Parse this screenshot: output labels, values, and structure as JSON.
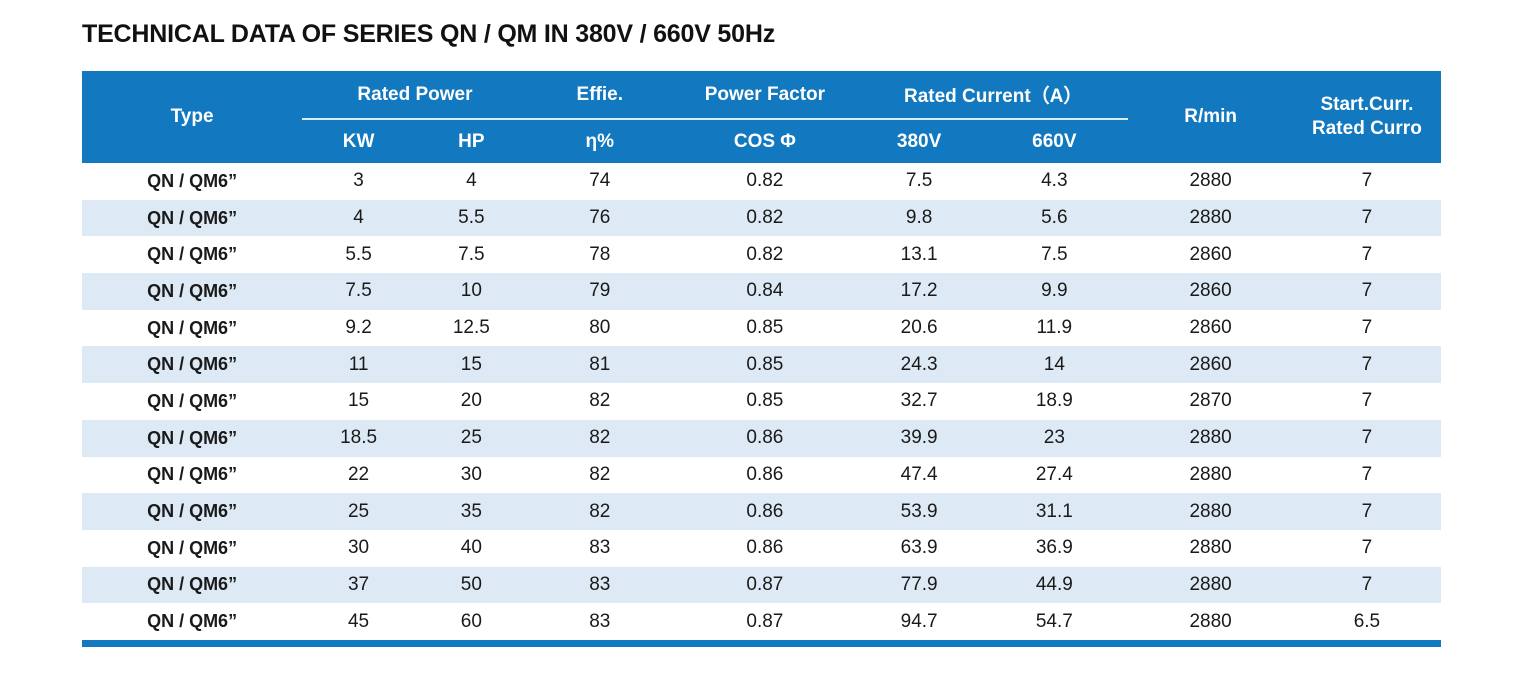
{
  "page": {
    "title": "TECHNICAL DATA OF SERIES QN / QM IN 380V / 660V 50Hz"
  },
  "colors": {
    "header_bg": "#1278bf",
    "stripe_bg": "#dde9f4",
    "bottom_bar": "#1278bf",
    "header_text": "#ffffff",
    "body_text": "#1a1a1a"
  },
  "table": {
    "header": {
      "type": "Type",
      "rated_power": "Rated Power",
      "kw": "KW",
      "hp": "HP",
      "effie": "Effie.",
      "eta_pct": "η%",
      "power_factor": "Power Factor",
      "cos_phi": "COS Φ",
      "rated_current": "Rated Current（A）",
      "v380": "380V",
      "v660": "660V",
      "rmin": "R/min",
      "start_curr_line1": "Start.Curr.",
      "start_curr_line2": "Rated Curro"
    },
    "rows": [
      [
        "QN / QM6”",
        "3",
        "4",
        "74",
        "0.82",
        "7.5",
        "4.3",
        "2880",
        "7"
      ],
      [
        "QN / QM6”",
        "4",
        "5.5",
        "76",
        "0.82",
        "9.8",
        "5.6",
        "2880",
        "7"
      ],
      [
        "QN / QM6”",
        "5.5",
        "7.5",
        "78",
        "0.82",
        "13.1",
        "7.5",
        "2860",
        "7"
      ],
      [
        "QN / QM6”",
        "7.5",
        "10",
        "79",
        "0.84",
        "17.2",
        "9.9",
        "2860",
        "7"
      ],
      [
        "QN / QM6”",
        "9.2",
        "12.5",
        "80",
        "0.85",
        "20.6",
        "11.9",
        "2860",
        "7"
      ],
      [
        "QN / QM6”",
        "11",
        "15",
        "81",
        "0.85",
        "24.3",
        "14",
        "2860",
        "7"
      ],
      [
        "QN / QM6”",
        "15",
        "20",
        "82",
        "0.85",
        "32.7",
        "18.9",
        "2870",
        "7"
      ],
      [
        "QN / QM6”",
        "18.5",
        "25",
        "82",
        "0.86",
        "39.9",
        "23",
        "2880",
        "7"
      ],
      [
        "QN / QM6”",
        "22",
        "30",
        "82",
        "0.86",
        "47.4",
        "27.4",
        "2880",
        "7"
      ],
      [
        "QN / QM6”",
        "25",
        "35",
        "82",
        "0.86",
        "53.9",
        "31.1",
        "2880",
        "7"
      ],
      [
        "QN / QM6”",
        "30",
        "40",
        "83",
        "0.86",
        "63.9",
        "36.9",
        "2880",
        "7"
      ],
      [
        "QN / QM6”",
        "37",
        "50",
        "83",
        "0.87",
        "77.9",
        "44.9",
        "2880",
        "7"
      ],
      [
        "QN / QM6”",
        "45",
        "60",
        "83",
        "0.87",
        "94.7",
        "54.7",
        "2880",
        "6.5"
      ]
    ]
  }
}
